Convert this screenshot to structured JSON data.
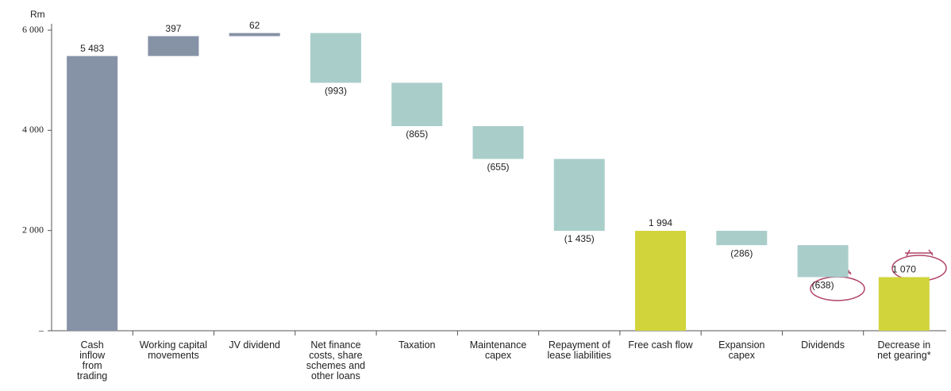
{
  "chart_data": {
    "type": "waterfall",
    "y_label": "Rm",
    "categories": [
      "Cash inflow from trading",
      "Working capital movements",
      "JV dividend",
      "Net finance costs, share schemes and other loans",
      "Taxation",
      "Maintenance capex",
      "Repayment of lease liabilities",
      "Free cash flow",
      "Expansion capex",
      "Dividends",
      "Decrease in net gearing*"
    ],
    "values": [
      5483,
      397,
      62,
      -993,
      -865,
      -655,
      -1435,
      1994,
      -286,
      -638,
      1070
    ],
    "value_labels": [
      "5 483",
      "397",
      "62",
      "(993)",
      "(865)",
      "(655)",
      "(1 435)",
      "1 994",
      "(286)",
      "(638)",
      "1 070"
    ],
    "measure": [
      "total",
      "relative",
      "relative",
      "relative",
      "relative",
      "relative",
      "relative",
      "total",
      "relative",
      "relative",
      "total"
    ],
    "colors": [
      "#8692a6",
      "#8692a6",
      "#8692a6",
      "#a9ceca",
      "#a9ceca",
      "#a9ceca",
      "#a9ceca",
      "#d1d43b",
      "#a9ceca",
      "#a9ceca",
      "#d1d43b"
    ],
    "ylim": [
      0,
      6200
    ],
    "yticks": [
      {
        "value": 0,
        "label": "–"
      },
      {
        "value": 2000,
        "label": "2 000"
      },
      {
        "value": 4000,
        "label": "4 000"
      },
      {
        "value": 6000,
        "label": "6 000"
      }
    ]
  }
}
